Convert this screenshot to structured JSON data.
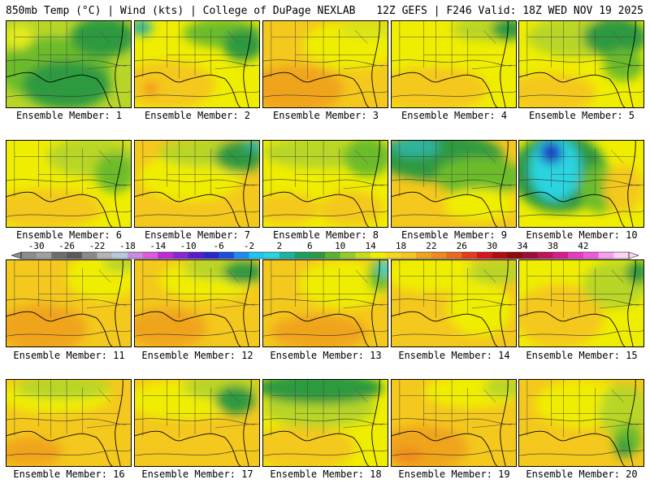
{
  "header": {
    "left": "850mb Temp (°C) | Wind (kts) | College of DuPage NEXLAB",
    "right": "12Z GEFS | F246 Valid: 18Z WED NOV 19 2025"
  },
  "panels": [
    {
      "label": "Ensemble Member: 1",
      "bg": "#b8d628",
      "blobs": [
        {
          "c": "#6cbc2c",
          "cx": 60,
          "cy": 60,
          "rx": 70,
          "ry": 40
        },
        {
          "c": "#2e9a40",
          "cx": 75,
          "cy": 80,
          "rx": 55,
          "ry": 30
        },
        {
          "c": "#2e9a40",
          "cx": 120,
          "cy": 20,
          "rx": 40,
          "ry": 25
        },
        {
          "c": "#e4ec1c",
          "cx": 15,
          "cy": 20,
          "rx": 18,
          "ry": 15
        }
      ]
    },
    {
      "label": "Ensemble Member: 2",
      "bg": "#f0ee00",
      "blobs": [
        {
          "c": "#f4c81c",
          "cx": 40,
          "cy": 80,
          "rx": 60,
          "ry": 30
        },
        {
          "c": "#f08a1c",
          "cx": 20,
          "cy": 85,
          "rx": 8,
          "ry": 8
        },
        {
          "c": "#2db4a0",
          "cx": 8,
          "cy": 8,
          "rx": 14,
          "ry": 10
        },
        {
          "c": "#6cbc2c",
          "cx": 110,
          "cy": 15,
          "rx": 50,
          "ry": 18
        },
        {
          "c": "#2e9a40",
          "cx": 135,
          "cy": 30,
          "rx": 25,
          "ry": 20
        }
      ]
    },
    {
      "label": "Ensemble Member: 3",
      "bg": "#f4c81c",
      "blobs": [
        {
          "c": "#f0a41c",
          "cx": 40,
          "cy": 85,
          "rx": 60,
          "ry": 30
        },
        {
          "c": "#f0ee00",
          "cx": 110,
          "cy": 30,
          "rx": 60,
          "ry": 30
        },
        {
          "c": "#d8e418",
          "cx": 130,
          "cy": 10,
          "rx": 35,
          "ry": 12
        }
      ]
    },
    {
      "label": "Ensemble Member: 4",
      "bg": "#f0ee00",
      "blobs": [
        {
          "c": "#f4c81c",
          "cx": 50,
          "cy": 85,
          "rx": 70,
          "ry": 28
        },
        {
          "c": "#b8d628",
          "cx": 120,
          "cy": 10,
          "rx": 45,
          "ry": 15
        },
        {
          "c": "#2e9a40",
          "cx": 145,
          "cy": 10,
          "rx": 20,
          "ry": 14
        }
      ]
    },
    {
      "label": "Ensemble Member: 5",
      "bg": "#f0ee00",
      "blobs": [
        {
          "c": "#f4c81c",
          "cx": 40,
          "cy": 90,
          "rx": 55,
          "ry": 25
        },
        {
          "c": "#b8d628",
          "cx": 70,
          "cy": 20,
          "rx": 60,
          "ry": 25
        },
        {
          "c": "#2e9a40",
          "cx": 120,
          "cy": 20,
          "rx": 40,
          "ry": 25
        },
        {
          "c": "#6cbc2c",
          "cx": 130,
          "cy": 55,
          "rx": 25,
          "ry": 20
        }
      ]
    },
    {
      "label": "Ensemble Member: 6",
      "bg": "#f0ee00",
      "blobs": [
        {
          "c": "#f4c81c",
          "cx": 50,
          "cy": 85,
          "rx": 70,
          "ry": 25
        },
        {
          "c": "#b8d628",
          "cx": 110,
          "cy": 20,
          "rx": 60,
          "ry": 25
        },
        {
          "c": "#6cbc2c",
          "cx": 135,
          "cy": 40,
          "rx": 25,
          "ry": 25
        }
      ]
    },
    {
      "label": "Ensemble Member: 7",
      "bg": "#f4c81c",
      "blobs": [
        {
          "c": "#f0ee00",
          "cx": 70,
          "cy": 45,
          "rx": 65,
          "ry": 30
        },
        {
          "c": "#b8d628",
          "cx": 90,
          "cy": 15,
          "rx": 60,
          "ry": 18
        },
        {
          "c": "#2e9a40",
          "cx": 130,
          "cy": 20,
          "rx": 30,
          "ry": 20
        },
        {
          "c": "#2db4a0",
          "cx": 148,
          "cy": 5,
          "rx": 12,
          "ry": 8
        }
      ]
    },
    {
      "label": "Ensemble Member: 8",
      "bg": "#f0ee00",
      "blobs": [
        {
          "c": "#b8d628",
          "cx": 70,
          "cy": 15,
          "rx": 70,
          "ry": 20
        },
        {
          "c": "#6cbc2c",
          "cx": 130,
          "cy": 20,
          "rx": 30,
          "ry": 25
        },
        {
          "c": "#f4c81c",
          "cx": 30,
          "cy": 85,
          "rx": 40,
          "ry": 20
        },
        {
          "c": "#f4c81c",
          "cx": 110,
          "cy": 85,
          "rx": 40,
          "ry": 22
        }
      ]
    },
    {
      "label": "Ensemble Member: 9",
      "bg": "#f4c81c",
      "blobs": [
        {
          "c": "#2e9a40",
          "cx": 60,
          "cy": 20,
          "rx": 80,
          "ry": 30
        },
        {
          "c": "#2db4a0",
          "cx": 30,
          "cy": 8,
          "rx": 30,
          "ry": 12
        },
        {
          "c": "#6cbc2c",
          "cx": 110,
          "cy": 45,
          "rx": 55,
          "ry": 25
        },
        {
          "c": "#f0ee00",
          "cx": 110,
          "cy": 80,
          "rx": 45,
          "ry": 20
        }
      ]
    },
    {
      "label": "Ensemble Member: 10",
      "bg": "#f0ee00",
      "blobs": [
        {
          "c": "#2e9a40",
          "cx": 50,
          "cy": 40,
          "rx": 60,
          "ry": 50
        },
        {
          "c": "#2ad4e0",
          "cx": 45,
          "cy": 35,
          "rx": 32,
          "ry": 40
        },
        {
          "c": "#1a40c8",
          "cx": 40,
          "cy": 15,
          "rx": 14,
          "ry": 14
        },
        {
          "c": "#6cbc2c",
          "cx": 100,
          "cy": 60,
          "rx": 25,
          "ry": 30
        },
        {
          "c": "#f4c81c",
          "cx": 130,
          "cy": 60,
          "rx": 25,
          "ry": 30
        }
      ]
    },
    {
      "label": "Ensemble Member: 11",
      "bg": "#f4c81c",
      "blobs": [
        {
          "c": "#f0a41c",
          "cx": 45,
          "cy": 85,
          "rx": 55,
          "ry": 30
        },
        {
          "c": "#f0ee00",
          "cx": 120,
          "cy": 20,
          "rx": 45,
          "ry": 30
        },
        {
          "c": "#b8d628",
          "cx": 140,
          "cy": 5,
          "rx": 20,
          "ry": 10
        }
      ]
    },
    {
      "label": "Ensemble Member: 12",
      "bg": "#f4c81c",
      "blobs": [
        {
          "c": "#f0a41c",
          "cx": 40,
          "cy": 85,
          "rx": 50,
          "ry": 25
        },
        {
          "c": "#f0ee00",
          "cx": 90,
          "cy": 25,
          "rx": 60,
          "ry": 25
        },
        {
          "c": "#b8d628",
          "cx": 110,
          "cy": 10,
          "rx": 50,
          "ry": 15
        },
        {
          "c": "#2e9a40",
          "cx": 135,
          "cy": 15,
          "rx": 25,
          "ry": 15
        }
      ]
    },
    {
      "label": "Ensemble Member: 13",
      "bg": "#f4c81c",
      "blobs": [
        {
          "c": "#f0a41c",
          "cx": 70,
          "cy": 90,
          "rx": 60,
          "ry": 22
        },
        {
          "c": "#f0ee00",
          "cx": 100,
          "cy": 30,
          "rx": 55,
          "ry": 30
        },
        {
          "c": "#6cbc2c",
          "cx": 145,
          "cy": 20,
          "rx": 15,
          "ry": 20
        },
        {
          "c": "#2ad4e0",
          "cx": 152,
          "cy": 10,
          "rx": 8,
          "ry": 10
        }
      ]
    },
    {
      "label": "Ensemble Member: 14",
      "bg": "#f4c81c",
      "blobs": [
        {
          "c": "#f0ee00",
          "cx": 50,
          "cy": 15,
          "rx": 60,
          "ry": 25
        },
        {
          "c": "#f0ee00",
          "cx": 110,
          "cy": 60,
          "rx": 40,
          "ry": 35
        },
        {
          "c": "#b8d628",
          "cx": 130,
          "cy": 15,
          "rx": 35,
          "ry": 15
        }
      ]
    },
    {
      "label": "Ensemble Member: 15",
      "bg": "#f0ee00",
      "blobs": [
        {
          "c": "#f4c81c",
          "cx": 50,
          "cy": 70,
          "rx": 55,
          "ry": 40
        },
        {
          "c": "#b8d628",
          "cx": 120,
          "cy": 30,
          "rx": 40,
          "ry": 30
        },
        {
          "c": "#2e9a40",
          "cx": 148,
          "cy": 15,
          "rx": 15,
          "ry": 15
        }
      ]
    },
    {
      "label": "Ensemble Member: 16",
      "bg": "#f4c81c",
      "blobs": [
        {
          "c": "#f0ee00",
          "cx": 60,
          "cy": 20,
          "rx": 70,
          "ry": 22
        },
        {
          "c": "#b8d628",
          "cx": 70,
          "cy": 10,
          "rx": 60,
          "ry": 14
        },
        {
          "c": "#f0a41c",
          "cx": 30,
          "cy": 90,
          "rx": 40,
          "ry": 18
        }
      ]
    },
    {
      "label": "Ensemble Member: 17",
      "bg": "#f4c81c",
      "blobs": [
        {
          "c": "#f0ee00",
          "cx": 60,
          "cy": 25,
          "rx": 70,
          "ry": 25
        },
        {
          "c": "#b8d628",
          "cx": 110,
          "cy": 10,
          "rx": 50,
          "ry": 15
        },
        {
          "c": "#2e9a40",
          "cx": 125,
          "cy": 25,
          "rx": 25,
          "ry": 18
        }
      ]
    },
    {
      "label": "Ensemble Member: 18",
      "bg": "#f0ee00",
      "blobs": [
        {
          "c": "#f4c81c",
          "cx": 50,
          "cy": 85,
          "rx": 65,
          "ry": 28
        },
        {
          "c": "#b8d628",
          "cx": 70,
          "cy": 35,
          "rx": 70,
          "ry": 25
        },
        {
          "c": "#2e9a40",
          "cx": 70,
          "cy": 10,
          "rx": 80,
          "ry": 20
        }
      ]
    },
    {
      "label": "Ensemble Member: 19",
      "bg": "#f4c81c",
      "blobs": [
        {
          "c": "#f0a41c",
          "cx": 40,
          "cy": 85,
          "rx": 55,
          "ry": 28
        },
        {
          "c": "#f08a1c",
          "cx": 20,
          "cy": 95,
          "rx": 18,
          "ry": 10
        },
        {
          "c": "#f0ee00",
          "cx": 100,
          "cy": 15,
          "rx": 60,
          "ry": 20
        },
        {
          "c": "#b8d628",
          "cx": 140,
          "cy": 10,
          "rx": 25,
          "ry": 12
        }
      ]
    },
    {
      "label": "Ensemble Member: 20",
      "bg": "#f4c81c",
      "blobs": [
        {
          "c": "#f0ee00",
          "cx": 80,
          "cy": 30,
          "rx": 60,
          "ry": 30
        },
        {
          "c": "#b8d628",
          "cx": 130,
          "cy": 40,
          "rx": 30,
          "ry": 35
        },
        {
          "c": "#6cbc2c",
          "cx": 135,
          "cy": 75,
          "rx": 18,
          "ry": 20
        },
        {
          "c": "#2e9a40",
          "cx": 130,
          "cy": 85,
          "rx": 10,
          "ry": 12
        }
      ]
    }
  ],
  "colorbar": {
    "labels": [
      "-30",
      "-26",
      "-22",
      "-18",
      "-14",
      "-10",
      "-6",
      "-2",
      "2",
      "6",
      "10",
      "14",
      "18",
      "22",
      "26",
      "30",
      "34",
      "38",
      "42"
    ],
    "colors": [
      "#8c8c8c",
      "#a0a0a0",
      "#6e6e6e",
      "#5a5a5a",
      "#8a8a8a",
      "#b4b4b4",
      "#b8c8dc",
      "#c88ce0",
      "#e05ae0",
      "#c028d8",
      "#8c28d0",
      "#5a1ec8",
      "#2828c8",
      "#1a50dc",
      "#1c8cf0",
      "#1cc8f0",
      "#2ad4e0",
      "#1ab4a0",
      "#1ca064",
      "#2e9a40",
      "#5ab42c",
      "#94cc28",
      "#c8dc1c",
      "#f0ee00",
      "#f4d81c",
      "#f4c81c",
      "#f0a41c",
      "#f08a1c",
      "#ec6a1c",
      "#e43c1c",
      "#d8141c",
      "#b00c14",
      "#8c0c0c",
      "#a00c3c",
      "#c0145a",
      "#d81c8c",
      "#e83cc0",
      "#f05ae0",
      "#f8a0ec",
      "#fcd4f4"
    ]
  }
}
